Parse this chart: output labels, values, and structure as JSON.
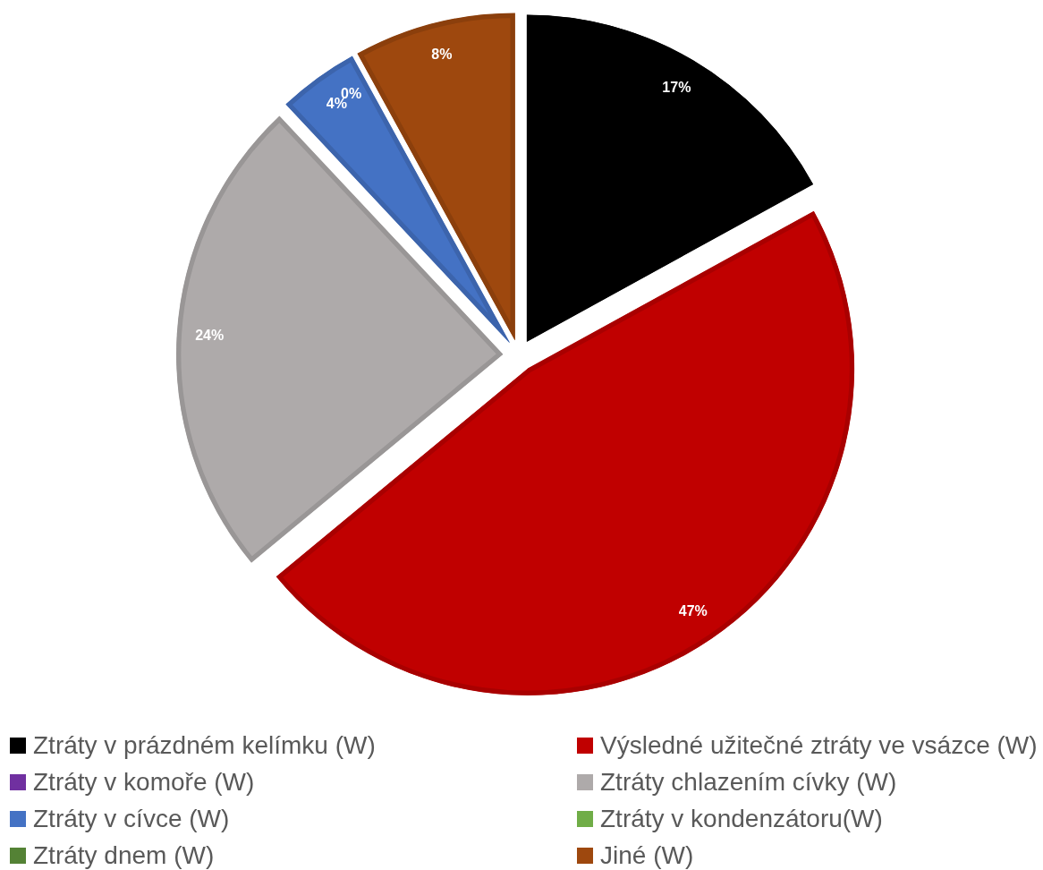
{
  "chart_data": {
    "type": "pie",
    "categories": [
      "Ztráty v prázdném kelímku (W)",
      "Výsledné užitečné ztráty ve vsázce (W)",
      "Ztráty v komoře (W)",
      "Ztráty chlazením cívky (W)",
      "Ztráty v cívce (W)",
      "Ztráty v kondenzátoru(W)",
      "Ztráty dnem (W)",
      "Jiné (W)"
    ],
    "values": [
      17,
      47,
      0,
      24,
      4,
      0,
      0,
      8
    ],
    "colors": [
      "#000000",
      "#c00000",
      "#7030a0",
      "#aeaaaa",
      "#4472c4",
      "#70ad47",
      "#548235",
      "#9e480e"
    ],
    "value_labels": [
      "17%",
      "47%",
      null,
      "24%",
      "4%",
      "0%",
      null,
      "8%"
    ],
    "legend": "bottom"
  }
}
